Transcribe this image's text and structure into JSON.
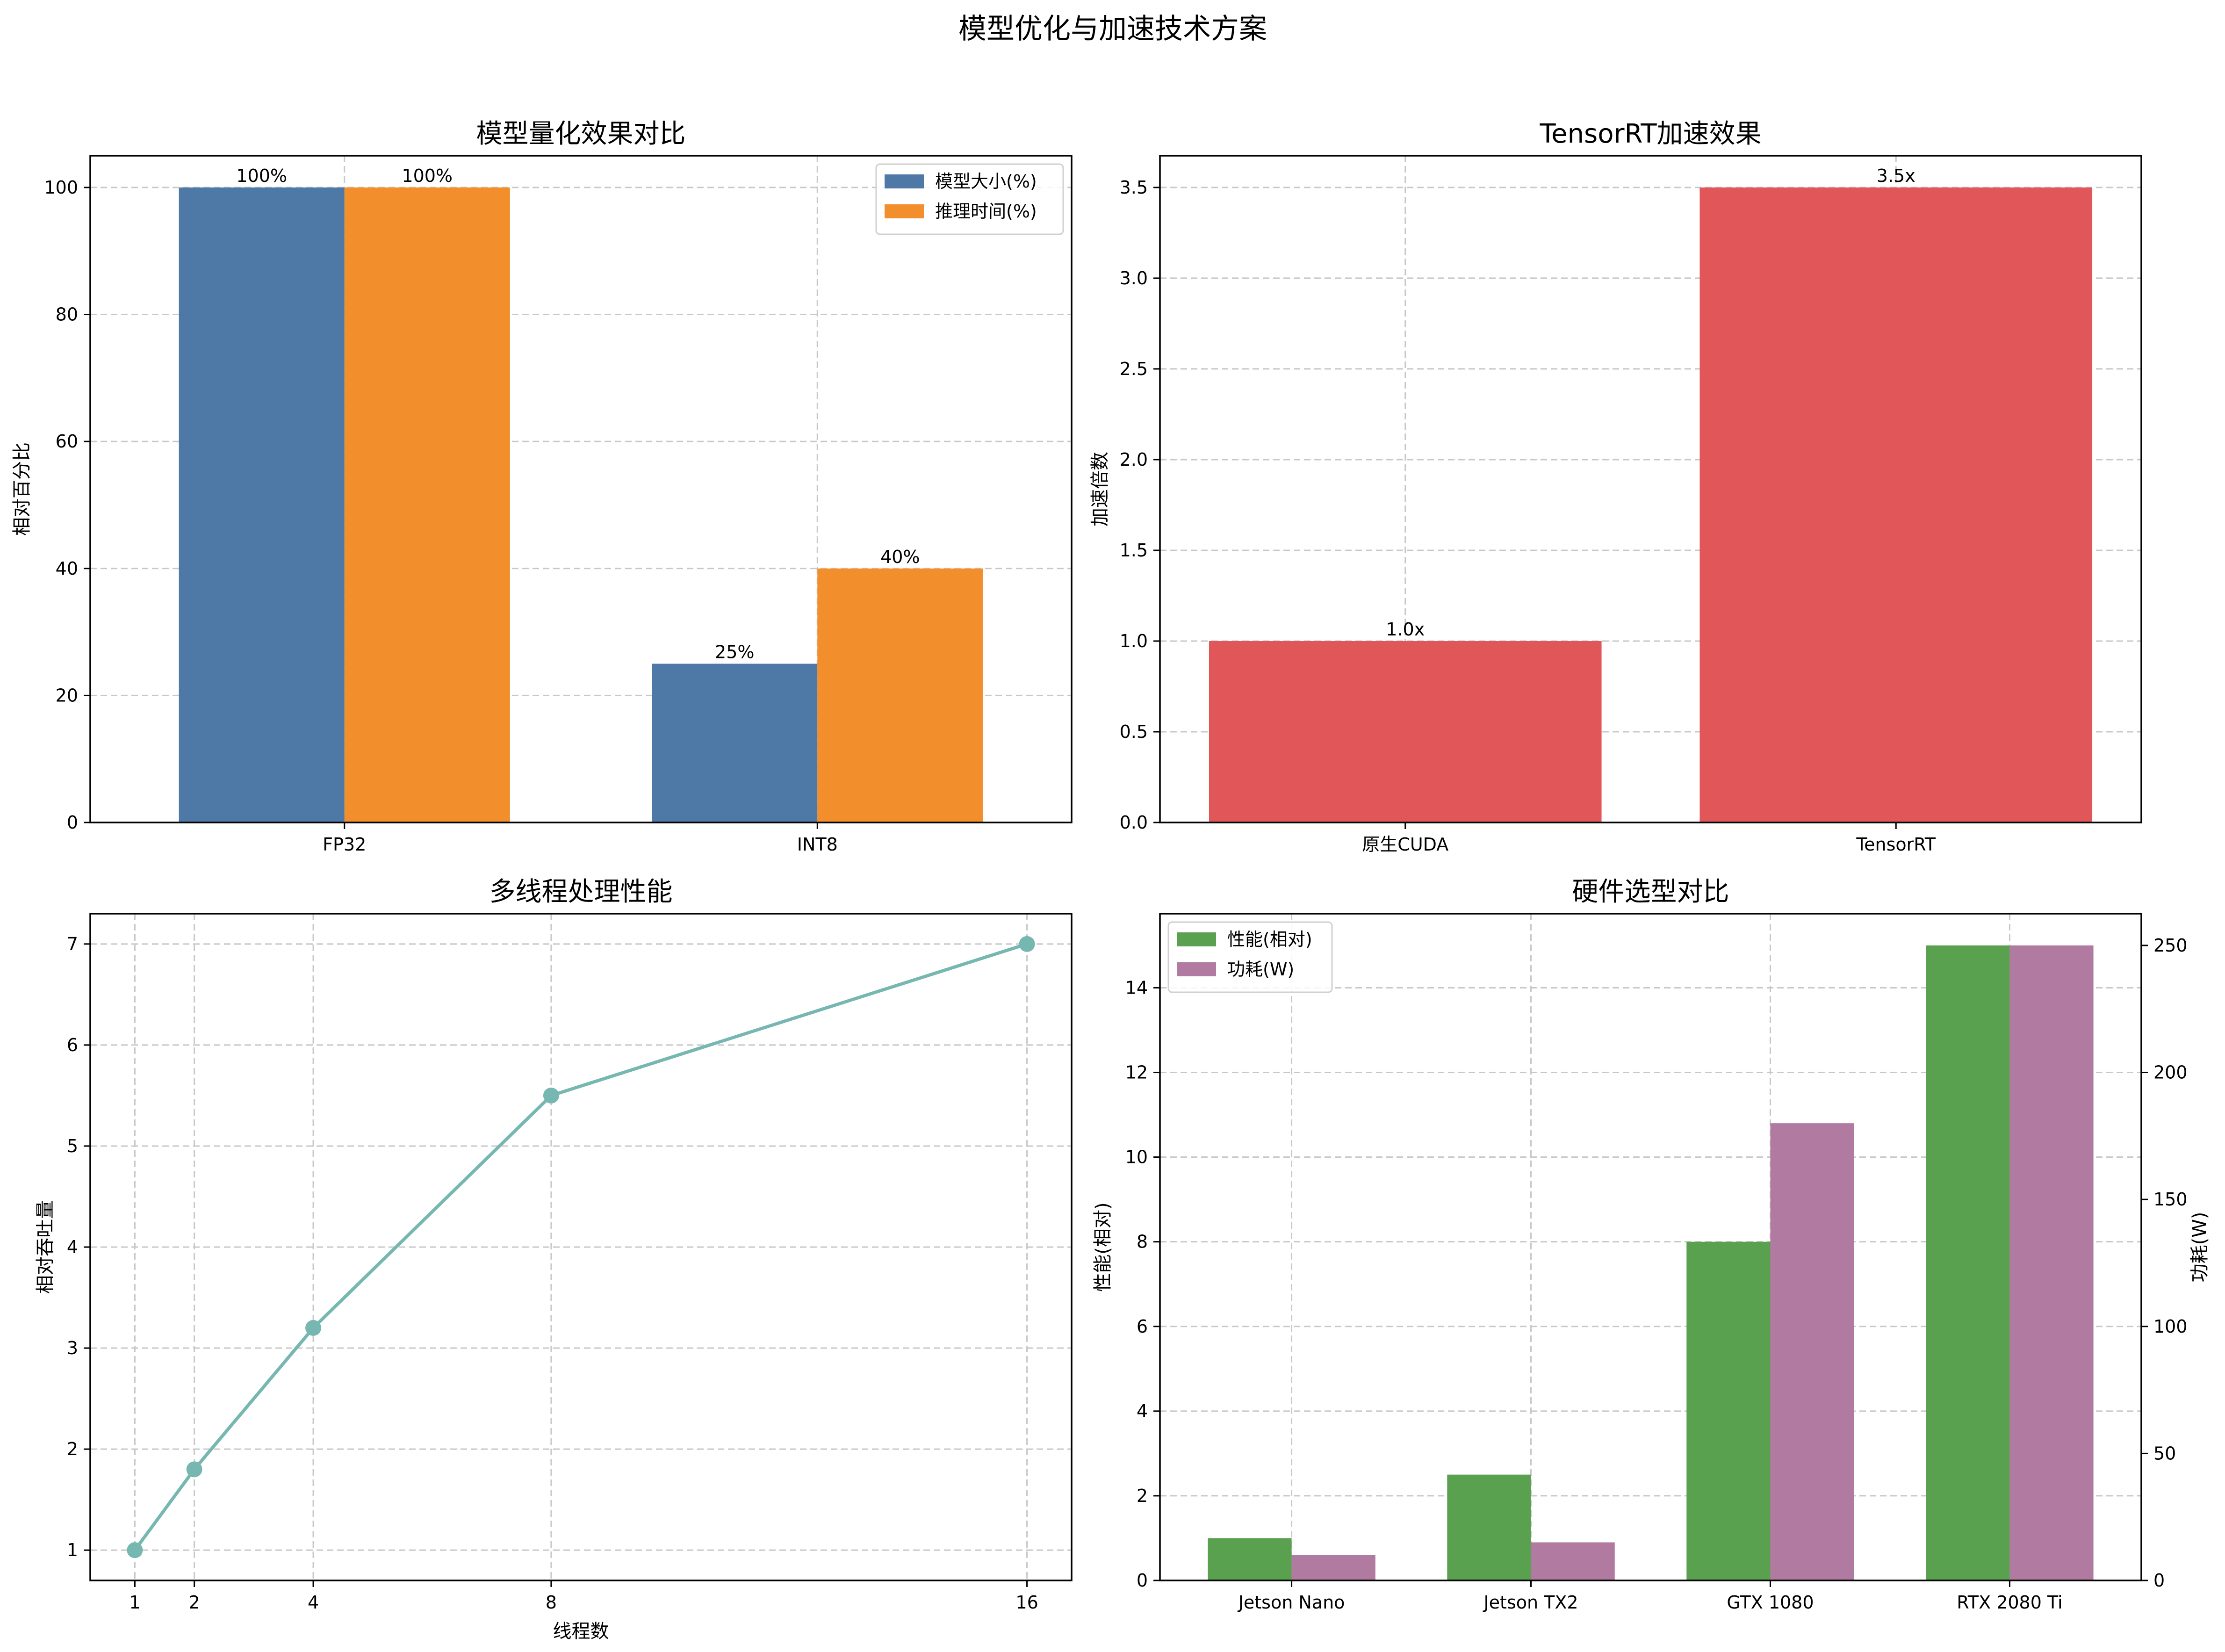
{
  "figure": {
    "title": "模型优化与加速技术方案"
  },
  "chart_data": [
    {
      "type": "bar",
      "title": "模型量化效果对比",
      "xlabel": "",
      "ylabel": "相对百分比",
      "categories": [
        "FP32",
        "INT8"
      ],
      "series": [
        {
          "name": "模型大小(%)",
          "values": [
            100,
            25
          ],
          "labels": [
            "100%",
            "25%"
          ],
          "color": "#4e79a7"
        },
        {
          "name": "推理时间(%)",
          "values": [
            100,
            40
          ],
          "labels": [
            "100%",
            "40%"
          ],
          "color": "#f28e2b"
        }
      ],
      "ylim": [
        0,
        105
      ],
      "yticks": [
        0,
        20,
        40,
        60,
        80,
        100
      ],
      "ytick_labels": [
        "0",
        "20",
        "40",
        "60",
        "80",
        "100"
      ],
      "grid": true,
      "legend": "top-right"
    },
    {
      "type": "bar",
      "title": "TensorRT加速效果",
      "xlabel": "",
      "ylabel": "加速倍数",
      "categories": [
        "原生CUDA",
        "TensorRT"
      ],
      "series": [
        {
          "name": "加速倍数",
          "values": [
            1.0,
            3.5
          ],
          "labels": [
            "1.0x",
            "3.5x"
          ],
          "color": "#e15759"
        }
      ],
      "ylim": [
        0,
        3.675
      ],
      "yticks": [
        0,
        0.5,
        1.0,
        1.5,
        2.0,
        2.5,
        3.0,
        3.5
      ],
      "ytick_labels": [
        "0.0",
        "0.5",
        "1.0",
        "1.5",
        "2.0",
        "2.5",
        "3.0",
        "3.5"
      ],
      "grid": true
    },
    {
      "type": "line",
      "title": "多线程处理性能",
      "xlabel": "线程数",
      "ylabel": "相对吞吐量",
      "x": [
        1,
        2,
        4,
        8,
        16
      ],
      "y": [
        1.0,
        1.8,
        3.2,
        5.5,
        7.0
      ],
      "xticks": [
        1,
        2,
        4,
        8,
        16
      ],
      "xtick_labels": [
        "1",
        "2",
        "4",
        "8",
        "16"
      ],
      "yticks": [
        1,
        2,
        3,
        4,
        5,
        6,
        7
      ],
      "ytick_labels": [
        "1",
        "2",
        "3",
        "4",
        "5",
        "6",
        "7"
      ],
      "xlim": [
        0.25,
        16.75
      ],
      "ylim": [
        0.7,
        7.3
      ],
      "color": "#76b7b2",
      "marker": "circle",
      "grid": true
    },
    {
      "type": "bar",
      "title": "硬件选型对比",
      "xlabel": "",
      "categories": [
        "Jetson Nano",
        "Jetson TX2",
        "GTX 1080",
        "RTX 2080 Ti"
      ],
      "series": [
        {
          "name": "性能(相对)",
          "values": [
            1,
            2.5,
            8,
            15
          ],
          "color": "#59a14f",
          "axis": "left"
        },
        {
          "name": "功耗(W)",
          "values": [
            10,
            15,
            180,
            250
          ],
          "color": "#b07aa1",
          "axis": "right"
        }
      ],
      "ylabel": "性能(相对)",
      "ylabel_color": "#59a14f",
      "ylim": [
        0,
        15.75
      ],
      "yticks": [
        0,
        2,
        4,
        6,
        8,
        10,
        12,
        14
      ],
      "ytick_labels": [
        "0",
        "2",
        "4",
        "6",
        "8",
        "10",
        "12",
        "14"
      ],
      "y2label": "功耗(W)",
      "y2label_color": "#b07aa1",
      "y2lim": [
        0,
        262.5
      ],
      "y2ticks": [
        0,
        50,
        100,
        150,
        200,
        250
      ],
      "y2tick_labels": [
        "0",
        "50",
        "100",
        "150",
        "200",
        "250"
      ],
      "grid": true,
      "legend": "top-left"
    }
  ]
}
